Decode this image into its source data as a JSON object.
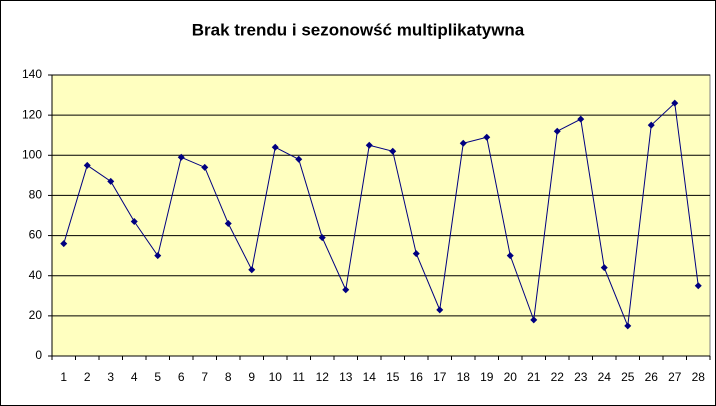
{
  "chart_data": {
    "type": "line",
    "title": "Brak trendu i sezonowść multiplikatywna",
    "categories": [
      "1",
      "2",
      "3",
      "4",
      "5",
      "6",
      "7",
      "8",
      "9",
      "10",
      "11",
      "12",
      "13",
      "14",
      "15",
      "16",
      "17",
      "18",
      "19",
      "20",
      "21",
      "22",
      "23",
      "24",
      "25",
      "26",
      "27",
      "28"
    ],
    "values": [
      56,
      95,
      87,
      67,
      50,
      99,
      94,
      66,
      43,
      104,
      98,
      59,
      33,
      105,
      102,
      51,
      23,
      106,
      109,
      50,
      18,
      112,
      118,
      44,
      15,
      115,
      126,
      35
    ],
    "color": "#000080",
    "ylim": [
      0,
      140
    ],
    "yticks": [
      0,
      20,
      40,
      60,
      80,
      100,
      120,
      140
    ],
    "grid": true
  }
}
